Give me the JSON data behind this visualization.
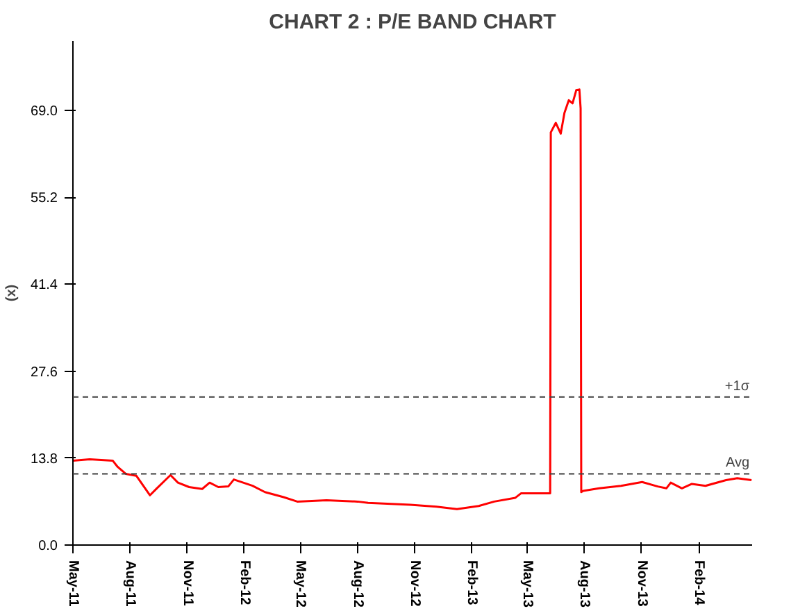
{
  "chart_data": {
    "type": "line",
    "title": "CHART 2 : P/E BAND CHART",
    "ylabel": "(x)",
    "x": [
      "2011-05-01",
      "2011-05-28",
      "2011-07-04",
      "2011-07-12",
      "2011-07-25",
      "2011-08-11",
      "2011-09-02",
      "2011-09-13",
      "2011-10-05",
      "2011-10-17",
      "2011-11-04",
      "2011-11-25",
      "2011-12-07",
      "2011-12-21",
      "2012-01-06",
      "2012-01-15",
      "2012-02-14",
      "2012-03-05",
      "2012-04-04",
      "2012-04-26",
      "2012-06-12",
      "2012-08-01",
      "2012-08-18",
      "2012-10-25",
      "2012-12-06",
      "2013-01-08",
      "2013-02-12",
      "2013-03-09",
      "2013-04-12",
      "2013-04-21",
      "2013-05-17",
      "2013-06-07",
      "2013-06-08",
      "2013-06-16",
      "2013-06-24",
      "2013-06-30",
      "2013-07-07",
      "2013-07-13",
      "2013-07-19",
      "2013-07-24",
      "2013-07-26",
      "2013-07-27",
      "2013-07-30",
      "2013-08-25",
      "2013-09-29",
      "2013-11-02",
      "2013-11-27",
      "2013-12-11",
      "2013-12-18",
      "2014-01-05",
      "2014-01-21",
      "2014-02-12",
      "2014-03-17",
      "2014-04-04",
      "2014-04-27"
    ],
    "series": [
      {
        "color": "#ff0000",
        "values": [
          13.4,
          13.6,
          13.4,
          12.4,
          11.3,
          11.0,
          7.9,
          9.0,
          11.1,
          9.9,
          9.2,
          8.9,
          9.9,
          9.2,
          9.3,
          10.4,
          9.4,
          8.4,
          7.6,
          6.9,
          7.1,
          6.9,
          6.7,
          6.4,
          6.1,
          5.7,
          6.2,
          6.9,
          7.5,
          8.2,
          8.2,
          8.2,
          65.5,
          67.0,
          65.3,
          68.6,
          70.6,
          70.1,
          72.2,
          72.3,
          69.3,
          8.4,
          8.6,
          9.0,
          9.4,
          10.0,
          9.3,
          9.0,
          9.9,
          9.0,
          9.7,
          9.4,
          10.3,
          10.6,
          10.3
        ]
      }
    ],
    "xlim": [
      "2011-05-01",
      "2014-04-28"
    ],
    "xticks": [
      {
        "value": "2011-05-01",
        "label": "May-11"
      },
      {
        "value": "2011-08-01",
        "label": "Aug-11"
      },
      {
        "value": "2011-11-01",
        "label": "Nov-11"
      },
      {
        "value": "2012-02-01",
        "label": "Feb-12"
      },
      {
        "value": "2012-05-01",
        "label": "May-12"
      },
      {
        "value": "2012-08-01",
        "label": "Aug-12"
      },
      {
        "value": "2012-11-01",
        "label": "Nov-12"
      },
      {
        "value": "2013-02-01",
        "label": "Feb-13"
      },
      {
        "value": "2013-05-01",
        "label": "May-13"
      },
      {
        "value": "2013-08-01",
        "label": "Aug-13"
      },
      {
        "value": "2013-11-01",
        "label": "Nov-13"
      },
      {
        "value": "2014-02-01",
        "label": "Feb-14"
      }
    ],
    "ylim": [
      0,
      80
    ],
    "yticks": [
      {
        "value": 0,
        "label": "0.0"
      },
      {
        "value": 13.8,
        "label": "13.8"
      },
      {
        "value": 27.6,
        "label": "27.6"
      },
      {
        "value": 41.4,
        "label": "41.4"
      },
      {
        "value": 55.2,
        "label": "55.2"
      },
      {
        "value": 69.0,
        "label": "69.0"
      }
    ],
    "ref_lines": [
      {
        "axis": "y",
        "value": 11.3,
        "label": "Avg",
        "color": "#404040",
        "line_style": "dashed"
      },
      {
        "axis": "y",
        "value": 23.5,
        "label": "+1σ",
        "color": "#404040",
        "line_style": "dashed"
      }
    ],
    "grid": false,
    "marker": "none",
    "line_style": "solid"
  }
}
